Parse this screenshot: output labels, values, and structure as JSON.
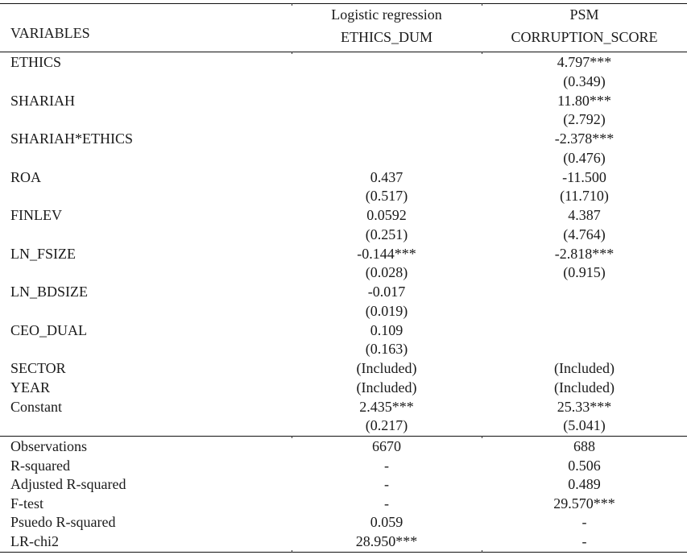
{
  "header": {
    "variables_label": "VARIABLES",
    "columns": [
      {
        "model": "Logistic regression",
        "dependent": "ETHICS_DUM"
      },
      {
        "model": "PSM",
        "dependent": "CORRUPTION_SCORE"
      }
    ]
  },
  "rows": [
    {
      "var": "ETHICS",
      "c1": "",
      "c2": "4.797***"
    },
    {
      "var": "",
      "c1": "",
      "c2": "(0.349)"
    },
    {
      "var": "SHARIAH",
      "c1": "",
      "c2": "11.80***"
    },
    {
      "var": "",
      "c1": "",
      "c2": "(2.792)"
    },
    {
      "var": "SHARIAH*ETHICS",
      "c1": "",
      "c2": "-2.378***"
    },
    {
      "var": "",
      "c1": "",
      "c2": "(0.476)"
    },
    {
      "var": "ROA",
      "c1": "0.437",
      "c2": "-11.500"
    },
    {
      "var": "",
      "c1": "(0.517)",
      "c2": "(11.710)"
    },
    {
      "var": "FINLEV",
      "c1": "0.0592",
      "c2": "4.387"
    },
    {
      "var": "",
      "c1": "(0.251)",
      "c2": "(4.764)"
    },
    {
      "var": "LN_FSIZE",
      "c1": "-0.144***",
      "c2": "-2.818***"
    },
    {
      "var": "",
      "c1": "(0.028)",
      "c2": "(0.915)"
    },
    {
      "var": "LN_BDSIZE",
      "c1": "-0.017",
      "c2": ""
    },
    {
      "var": "",
      "c1": "(0.019)",
      "c2": ""
    },
    {
      "var": "CEO_DUAL",
      "c1": "0.109",
      "c2": ""
    },
    {
      "var": "",
      "c1": "(0.163)",
      "c2": ""
    },
    {
      "var": " SECTOR",
      "c1": "(Included)",
      "c2": "(Included)"
    },
    {
      "var": " YEAR",
      "c1": "(Included)",
      "c2": "(Included)"
    },
    {
      "var": "Constant",
      "c1": "2.435***",
      "c2": "25.33***"
    },
    {
      "var": "",
      "c1": "(0.217)",
      "c2": "(5.041)"
    }
  ],
  "stats": [
    {
      "var": "Observations",
      "c1": "6670",
      "c2": "688"
    },
    {
      "var": "R-squared",
      "c1": "-",
      "c2": "0.506"
    },
    {
      "var": "Adjusted R-squared",
      "c1": "-",
      "c2": "0.489"
    },
    {
      "var": "F-test",
      "c1": "-",
      "c2": "29.570***"
    },
    {
      "var": "Psuedo R-squared",
      "c1": "0.059",
      "c2": "-"
    },
    {
      "var": "LR-chi2",
      "c1": "28.950***",
      "c2": "-"
    }
  ]
}
